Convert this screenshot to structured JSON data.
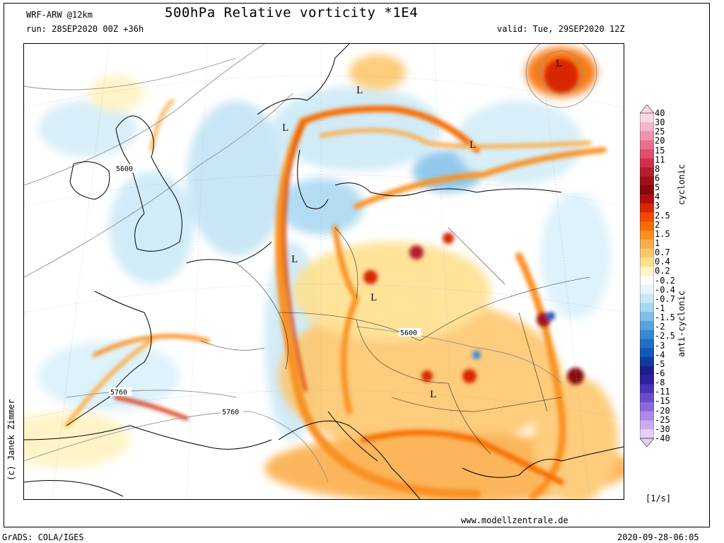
{
  "header": {
    "model": "WRF-ARW @12km",
    "title": "500hPa Relative vorticity *1E4",
    "run": "run: 28SEP2020 00Z +36h",
    "valid": "valid: Tue, 29SEP2020 12Z"
  },
  "side": {
    "copyright": "(c) Janek Zimmer",
    "cyclonic": "cyclonic",
    "anticyclonic": "anti-cyclonic",
    "unit": "[1/s]"
  },
  "footer": {
    "website": "www.modellzentrale.de",
    "grads": "GrADS: COLA/IGES",
    "timestamp": "2020-09-28-06:05"
  },
  "colorbar": {
    "labels": [
      "40",
      "30",
      "25",
      "20",
      "15",
      "11",
      "8",
      "6",
      "5",
      "4",
      "3",
      "2.5",
      "2",
      "1.5",
      "1",
      "0.7",
      "0.4",
      "0.2",
      "-0.2",
      "-0.4",
      "-0.7",
      "-1",
      "-1.5",
      "-2",
      "-2.5",
      "-3",
      "-4",
      "-5",
      "-6",
      "-8",
      "-11",
      "-15",
      "-20",
      "-25",
      "-30",
      "-40"
    ],
    "colors": [
      "#fcd7e0",
      "#f5b5c8",
      "#ef93ae",
      "#e86f8e",
      "#df4e6d",
      "#d0324c",
      "#b51f2e",
      "#9c1219",
      "#870808",
      "#b10d0d",
      "#d72600",
      "#f04a00",
      "#f76d00",
      "#f99020",
      "#fcae4a",
      "#fdc76e",
      "#ffe08e",
      "#fff3c2",
      "#ffffff",
      "#e8f5fb",
      "#c9e8f7",
      "#a6d7f0",
      "#7fbfe8",
      "#58a3dd",
      "#3a88d2",
      "#226ec5",
      "#1557b8",
      "#113b9e",
      "#1b1d8c",
      "#2d1f9e",
      "#4b33b5",
      "#6a4bcb",
      "#8c68dc",
      "#ac8ae7",
      "#c9acf0",
      "#e3cff8"
    ]
  },
  "map_labels": {
    "lows": [
      "L",
      "L",
      "L",
      "L",
      "L",
      "L",
      "L"
    ],
    "contours": [
      "5600",
      "5600",
      "5760",
      "5760"
    ]
  }
}
